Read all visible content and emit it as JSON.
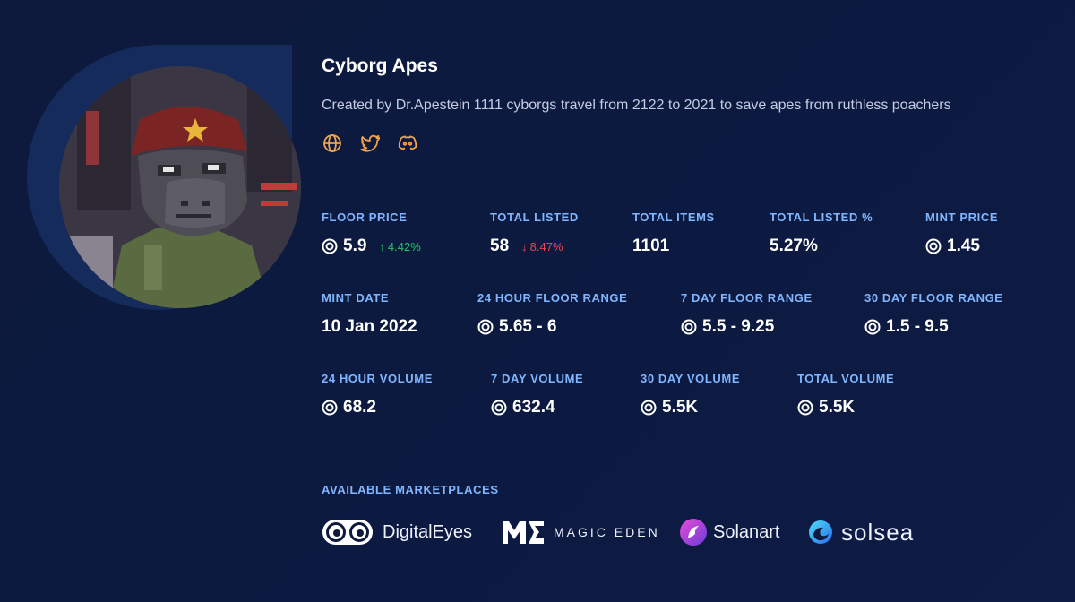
{
  "collection": {
    "name": "Cyborg Apes",
    "description": "Created by Dr.Apestein 1111 cyborgs travel from 2122 to 2021 to save apes from ruthless poachers",
    "links": [
      "globe-icon",
      "twitter-icon",
      "discord-icon"
    ]
  },
  "stats": {
    "floor_price": {
      "label": "FLOOR PRICE",
      "value": "5.9",
      "change": "4.42%",
      "direction": "up"
    },
    "total_listed": {
      "label": "TOTAL LISTED",
      "value": "58",
      "change": "8.47%",
      "direction": "down"
    },
    "total_items": {
      "label": "TOTAL ITEMS",
      "value": "1101"
    },
    "total_listed_pct": {
      "label": "TOTAL LISTED %",
      "value": "5.27%"
    },
    "mint_price": {
      "label": "MINT PRICE",
      "value": "1.45"
    },
    "mint_date": {
      "label": "MINT DATE",
      "value": "10 Jan 2022"
    },
    "floor_range_24h": {
      "label": "24 HOUR FLOOR RANGE",
      "value": "5.65 - 6"
    },
    "floor_range_7d": {
      "label": "7 DAY FLOOR RANGE",
      "value": "5.5 - 9.25"
    },
    "floor_range_30d": {
      "label": "30 DAY FLOOR RANGE",
      "value": "1.5 - 9.5"
    },
    "volume_24h": {
      "label": "24 HOUR VOLUME",
      "value": "68.2"
    },
    "volume_7d": {
      "label": "7 DAY VOLUME",
      "value": "632.4"
    },
    "volume_30d": {
      "label": "30 DAY VOLUME",
      "value": "5.5K"
    },
    "volume_total": {
      "label": "TOTAL VOLUME",
      "value": "5.5K"
    }
  },
  "marketplaces": {
    "label": "AVAILABLE MARKETPLACES",
    "items": [
      {
        "name": "DigitalEyes",
        "icon": "digitaleyes-logo-icon"
      },
      {
        "name": "MAGIC EDEN",
        "icon": "magic-eden-logo-icon"
      },
      {
        "name": "Solanart",
        "icon": "solanart-logo-icon"
      },
      {
        "name": "solsea",
        "icon": "solsea-logo-icon"
      }
    ]
  },
  "colors": {
    "background": "#0d1a3d",
    "label": "#7fb6ff",
    "up": "#22c55e",
    "down": "#ef4444",
    "accent": "#f0a24b"
  }
}
